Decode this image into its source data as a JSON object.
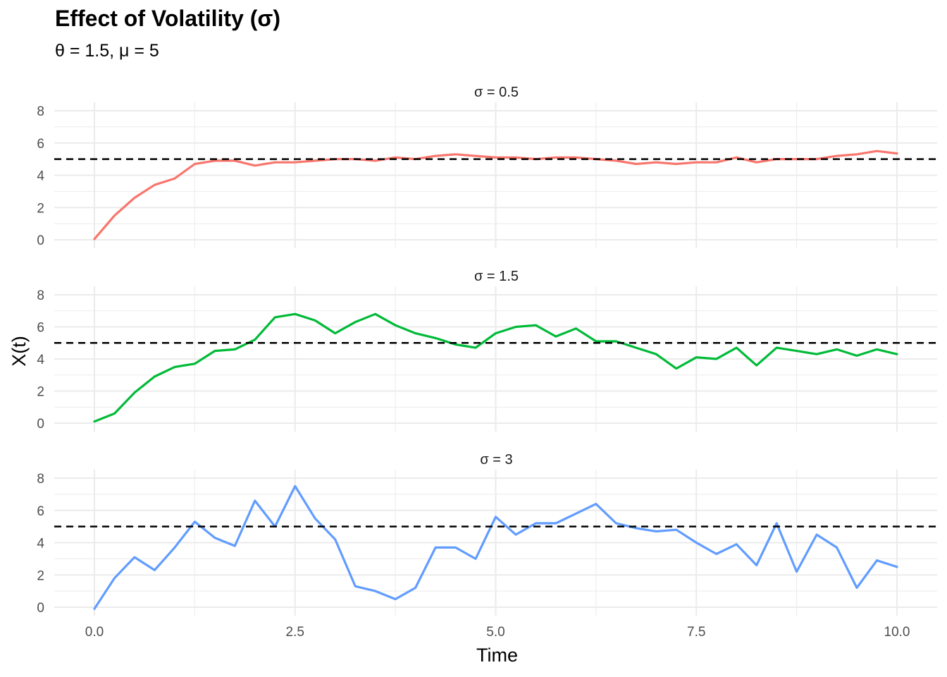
{
  "title": "Effect of Volatility (σ)",
  "subtitle": "θ = 1.5, μ = 5",
  "colors": {
    "series": [
      "#F8766D",
      "#00BA38",
      "#619CFF"
    ],
    "reference": "#000000",
    "grid": "#ebebeb"
  },
  "chart_data": {
    "type": "line",
    "xlabel": "Time",
    "ylabel": "X(t)",
    "xlim": [
      0,
      10
    ],
    "ylim": [
      0,
      8
    ],
    "x_ticks": [
      "0.0",
      "2.5",
      "5.0",
      "7.5",
      "10.0"
    ],
    "y_ticks": [
      "0",
      "2",
      "4",
      "6",
      "8"
    ],
    "reference_line": {
      "y": 5,
      "style": "dashed"
    },
    "grid": true,
    "x": [
      0,
      0.25,
      0.5,
      0.75,
      1,
      1.25,
      1.5,
      1.75,
      2,
      2.25,
      2.5,
      2.75,
      3,
      3.25,
      3.5,
      3.75,
      4,
      4.25,
      4.5,
      4.75,
      5,
      5.25,
      5.5,
      5.75,
      6,
      6.25,
      6.5,
      6.75,
      7,
      7.25,
      7.5,
      7.75,
      8,
      8.25,
      8.5,
      8.75,
      9,
      9.25,
      9.5,
      9.75,
      10
    ],
    "panels": [
      {
        "label": "σ = 0.5",
        "values": [
          0.05,
          1.5,
          2.6,
          3.4,
          3.8,
          4.7,
          4.9,
          4.9,
          4.6,
          4.8,
          4.8,
          4.9,
          5.0,
          5.0,
          4.9,
          5.1,
          5.0,
          5.2,
          5.3,
          5.2,
          5.1,
          5.1,
          5.0,
          5.1,
          5.1,
          5.0,
          4.9,
          4.7,
          4.8,
          4.7,
          4.8,
          4.8,
          5.1,
          4.8,
          5.0,
          5.0,
          5.0,
          5.2,
          5.3,
          5.5,
          5.35
        ]
      },
      {
        "label": "σ = 1.5",
        "values": [
          0.1,
          0.6,
          1.9,
          2.9,
          3.5,
          3.7,
          4.5,
          4.6,
          5.2,
          6.6,
          6.8,
          6.4,
          5.6,
          6.3,
          6.8,
          6.1,
          5.6,
          5.3,
          4.9,
          4.7,
          5.6,
          6.0,
          6.1,
          5.4,
          5.9,
          5.1,
          5.1,
          4.7,
          4.3,
          3.4,
          4.1,
          4.0,
          4.7,
          3.6,
          4.7,
          4.5,
          4.3,
          4.6,
          4.2,
          4.6,
          4.3
        ]
      },
      {
        "label": "σ = 3",
        "values": [
          -0.1,
          1.8,
          3.1,
          2.3,
          3.7,
          5.3,
          4.3,
          3.8,
          6.6,
          5.0,
          7.5,
          5.5,
          4.2,
          1.3,
          1.0,
          0.5,
          1.2,
          3.7,
          3.7,
          3.0,
          5.6,
          4.5,
          5.2,
          5.2,
          5.8,
          6.4,
          5.2,
          4.9,
          4.7,
          4.8,
          4.0,
          3.3,
          3.9,
          2.6,
          5.2,
          2.2,
          4.5,
          3.7,
          1.2,
          2.9,
          2.5
        ]
      }
    ]
  }
}
